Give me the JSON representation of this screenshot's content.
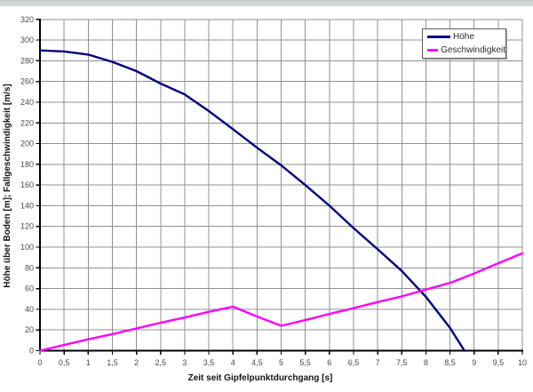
{
  "chart_data": {
    "type": "line",
    "title": "",
    "xlabel": "Zeit seit Gipfelpunktdurchgang [s]",
    "ylabel": "Höhe über Boden [m]; Fallgeschwindigkeit [m/s]",
    "xlim": [
      0,
      10
    ],
    "ylim": [
      0,
      320
    ],
    "grid": true,
    "grid_color": "#909090",
    "axis_color": "#000000",
    "tick_label_color": "#4a4a4a",
    "legend_position": "top-right",
    "x_ticks": [
      0,
      0.5,
      1,
      1.5,
      2,
      2.5,
      3,
      3.5,
      4,
      4.5,
      5,
      5.5,
      6,
      6.5,
      7,
      7.5,
      8,
      8.5,
      9,
      9.5,
      10
    ],
    "x_tick_labels": [
      "0",
      "0,5",
      "1",
      "1,5",
      "2",
      "2,5",
      "3",
      "3,5",
      "4",
      "4,5",
      "5",
      "5,5",
      "6",
      "6,5",
      "7",
      "7,5",
      "8",
      "8,5",
      "9",
      "9,5",
      "10"
    ],
    "y_ticks": [
      0,
      20,
      40,
      60,
      80,
      100,
      120,
      140,
      160,
      180,
      200,
      220,
      240,
      260,
      280,
      300,
      320
    ],
    "y_tick_labels": [
      "0",
      "20",
      "40",
      "60",
      "80",
      "100",
      "120",
      "140",
      "160",
      "180",
      "200",
      "220",
      "240",
      "260",
      "280",
      "300",
      "320"
    ],
    "series": [
      {
        "name": "Höhe",
        "color": "#000080",
        "points": [
          [
            0,
            290
          ],
          [
            0.5,
            289
          ],
          [
            1,
            286
          ],
          [
            1.5,
            279
          ],
          [
            2,
            270
          ],
          [
            2.5,
            258
          ],
          [
            3,
            247.5
          ],
          [
            3.5,
            231.5
          ],
          [
            4,
            214
          ],
          [
            4.5,
            196
          ],
          [
            5,
            179
          ],
          [
            5.5,
            160
          ],
          [
            6,
            140
          ],
          [
            6.5,
            118.5
          ],
          [
            7,
            98
          ],
          [
            7.5,
            77
          ],
          [
            8,
            52
          ],
          [
            8.5,
            22
          ],
          [
            8.8,
            0
          ]
        ]
      },
      {
        "name": "Geschwindigkeit",
        "color": "#ff00ff",
        "points": [
          [
            0,
            0
          ],
          [
            0.5,
            5.5
          ],
          [
            1,
            11
          ],
          [
            1.5,
            16
          ],
          [
            2,
            21.5
          ],
          [
            2.5,
            27
          ],
          [
            3,
            32
          ],
          [
            3.5,
            37.5
          ],
          [
            4,
            42.5
          ],
          [
            4.5,
            33
          ],
          [
            5,
            24
          ],
          [
            5.5,
            29.5
          ],
          [
            6,
            35.5
          ],
          [
            6.5,
            41
          ],
          [
            7,
            47
          ],
          [
            7.5,
            52.5
          ],
          [
            8,
            59
          ],
          [
            8.5,
            65.5
          ],
          [
            9,
            74.5
          ],
          [
            9.5,
            84.5
          ],
          [
            10,
            94
          ]
        ]
      }
    ]
  }
}
